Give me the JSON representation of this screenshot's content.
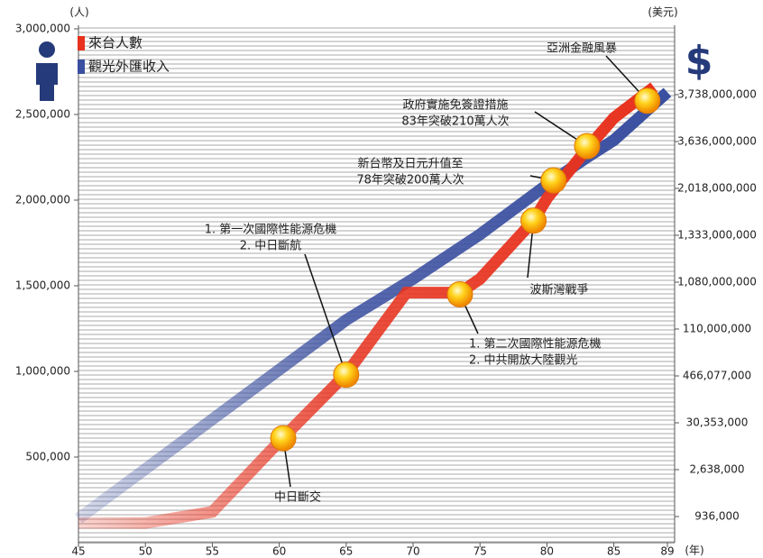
{
  "chart_data": {
    "type": "line",
    "y_unit": "(人)",
    "y2_unit": "(美元)",
    "x_unit": "(年)",
    "xlim": [
      45,
      89
    ],
    "xticks": [
      45,
      50,
      55,
      60,
      65,
      70,
      75,
      80,
      85,
      89
    ],
    "ylim": [
      0,
      3000000
    ],
    "yticks": [
      {
        "value": 500000,
        "label": "500,000"
      },
      {
        "value": 1000000,
        "label": "1,000,000"
      },
      {
        "value": 1500000,
        "label": "1,500,000"
      },
      {
        "value": 2000000,
        "label": "2,000,000"
      },
      {
        "value": 2500000,
        "label": "2,500,000"
      },
      {
        "value": 3000000,
        "label": "3,000,000"
      }
    ],
    "y2_labels": [
      "936,000",
      "2,638,000",
      "30,353,000",
      "466,077,000",
      "110,000,000",
      "1,080,000,000",
      "1,333,000,000",
      "2,018,000,000",
      "3,636,000,000",
      "3,738,000,000"
    ],
    "series": [
      {
        "name": "來台人數",
        "color": "#e8321e",
        "x": [
          45,
          50,
          55,
          60,
          65,
          69.5,
          73.5,
          75,
          79,
          80,
          83,
          85,
          88
        ],
        "values": [
          115000,
          115000,
          180000,
          590000,
          985000,
          1460000,
          1460000,
          1540000,
          1880000,
          2010000,
          2300000,
          2480000,
          2660000
        ]
      },
      {
        "name": "觀光外匯收入",
        "color": "#3a4fa0",
        "x": [
          45,
          50,
          55,
          60,
          65,
          70,
          75,
          80,
          83,
          85,
          89
        ],
        "values": [
          140000,
          430000,
          720000,
          1010000,
          1300000,
          1540000,
          1800000,
          2090000,
          2250000,
          2350000,
          2630000
        ]
      }
    ],
    "annotations": [
      {
        "x": 60.3,
        "y": 610000,
        "text": [
          "中日斷交"
        ]
      },
      {
        "x": 65,
        "y": 980000,
        "text": [
          "1. 第一次國際性能源危機",
          "2. 中日斷航"
        ]
      },
      {
        "x": 73.5,
        "y": 1450000,
        "text": [
          "1. 第二次國際性能源危機",
          "2. 中共開放大陸觀光"
        ]
      },
      {
        "x": 79,
        "y": 1880000,
        "text": [
          "波斯灣戰爭"
        ]
      },
      {
        "x": 80.5,
        "y": 2115000,
        "text": [
          "新台幣及日元升值至",
          "78年突破200萬人次"
        ]
      },
      {
        "x": 83,
        "y": 2315000,
        "text": [
          "政府實施免簽證措施",
          "83年突破210萬人次"
        ]
      },
      {
        "x": 87.5,
        "y": 2580000,
        "text": [
          "亞洲金融風暴"
        ]
      }
    ]
  }
}
